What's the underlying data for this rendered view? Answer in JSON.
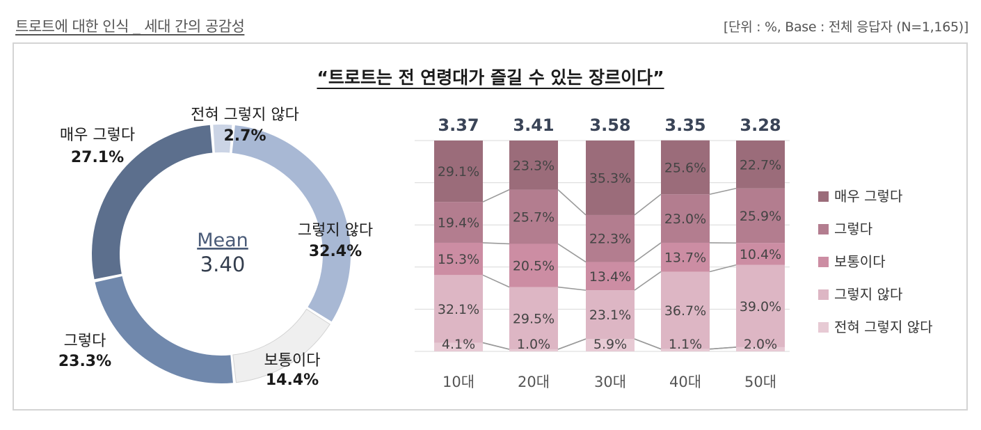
{
  "header": {
    "title": "트로트에 대한 인식 _ 세대 간의 공감성",
    "unit_note": "[단위 : %, Base : 전체 응답자 (N=1,165)]"
  },
  "question": "“트로트는 전 연령대가 즐길 수 있는 장르이다”",
  "chart_data": [
    {
      "type": "pie",
      "subtype": "donut",
      "center_label": "Mean",
      "center_value": "3.40",
      "slices": [
        {
          "label": "전혀 그렇지 않다",
          "value": 2.7,
          "display": "2.7%",
          "color": "#cbd4e5"
        },
        {
          "label": "그렇지 않다",
          "value": 32.4,
          "display": "32.4%",
          "color": "#a8b8d4"
        },
        {
          "label": "보통이다",
          "value": 14.4,
          "display": "14.4%",
          "color": "#efefef"
        },
        {
          "label": "그렇다",
          "value": 23.3,
          "display": "23.3%",
          "color": "#7088ac"
        },
        {
          "label": "매우 그렇다",
          "value": 27.1,
          "display": "27.1%",
          "color": "#5c6f8d"
        }
      ]
    },
    {
      "type": "bar",
      "subtype": "stacked-100",
      "categories": [
        "10대",
        "20대",
        "30대",
        "40대",
        "50대"
      ],
      "means": [
        "3.37",
        "3.41",
        "3.58",
        "3.35",
        "3.28"
      ],
      "series": [
        {
          "name": "전혀 그렇지 않다",
          "color": "#e7cad4",
          "values": [
            4.1,
            1.0,
            5.9,
            1.1,
            2.0
          ],
          "display": [
            "4.1%",
            "1.0%",
            "5.9%",
            "1.1%",
            "2.0%"
          ]
        },
        {
          "name": "그렇지 않다",
          "color": "#ddb6c4",
          "values": [
            32.1,
            29.5,
            23.1,
            36.7,
            39.0
          ],
          "display": [
            "32.1%",
            "29.5%",
            "23.1%",
            "36.7%",
            "39.0%"
          ]
        },
        {
          "name": "보통이다",
          "color": "#cc8da3",
          "values": [
            15.3,
            20.5,
            13.4,
            13.7,
            10.4
          ],
          "display": [
            "15.3%",
            "20.5%",
            "13.4%",
            "13.7%",
            "10.4%"
          ]
        },
        {
          "name": "그렇다",
          "color": "#b37d8f",
          "values": [
            19.4,
            25.7,
            22.3,
            23.0,
            25.9
          ],
          "display": [
            "19.4%",
            "25.7%",
            "22.3%",
            "23.0%",
            "25.9%"
          ]
        },
        {
          "name": "매우 그렇다",
          "color": "#9b6c7a",
          "values": [
            29.1,
            23.3,
            35.3,
            25.6,
            22.7
          ],
          "display": [
            "29.1%",
            "23.3%",
            "35.3%",
            "25.6%",
            "22.7%"
          ]
        }
      ],
      "legend_order": [
        "매우 그렇다",
        "그렇다",
        "보통이다",
        "그렇지 않다",
        "전혀 그렇지 않다"
      ],
      "legend_position": "right",
      "grid": true,
      "ylim": [
        0,
        100
      ]
    }
  ]
}
